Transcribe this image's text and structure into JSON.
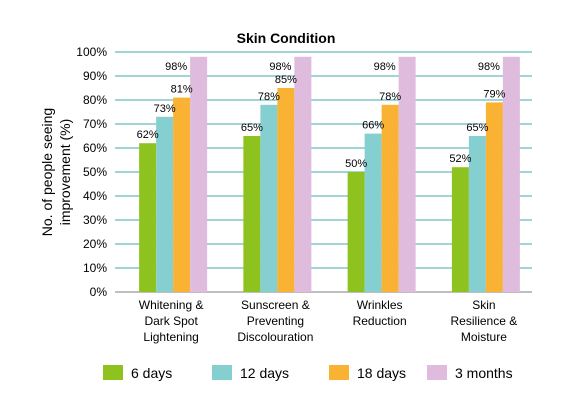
{
  "chart_data": {
    "type": "bar",
    "title": "Skin Condition",
    "ylabel": "No. of people seeing improvement (%)",
    "ylabel_lines": [
      "No. of people seeing",
      "improvement (%)"
    ],
    "xlabel": "",
    "ylim": [
      0,
      100
    ],
    "yticks": [
      0,
      10,
      20,
      30,
      40,
      50,
      60,
      70,
      80,
      90,
      100
    ],
    "ytick_labels": [
      "0%",
      "10%",
      "20%",
      "30%",
      "40%",
      "50%",
      "60%",
      "70%",
      "80%",
      "90%",
      "100%"
    ],
    "grid": true,
    "legend_position": "bottom",
    "categories": [
      "Whitening & Dark Spot Lightening",
      "Sunscreen & Preventing Discolouration",
      "Wrinkles Reduction",
      "Skin Resilience & Moisture"
    ],
    "category_lines": [
      [
        "Whitening &",
        "Dark Spot",
        "Lightening"
      ],
      [
        "Sunscreen &",
        "Preventing",
        "Discolouration"
      ],
      [
        "Wrinkles",
        "Reduction"
      ],
      [
        "Skin",
        "Resilience &",
        "Moisture"
      ]
    ],
    "series": [
      {
        "name": "6 days",
        "color": "#8dc21f",
        "values": [
          62,
          65,
          50,
          52
        ],
        "labels": [
          "62%",
          "65%",
          "50%",
          "52%"
        ]
      },
      {
        "name": "12  days",
        "color": "#86cfd1",
        "values": [
          73,
          78,
          66,
          65
        ],
        "labels": [
          "73%",
          "78%",
          "66%",
          "65%"
        ]
      },
      {
        "name": "18 days",
        "color": "#f9b233",
        "values": [
          81,
          85,
          78,
          79
        ],
        "labels": [
          "81%",
          "85%",
          "78%",
          "79%"
        ]
      },
      {
        "name": "3  months",
        "color": "#dfbcdd",
        "values": [
          98,
          98,
          98,
          98
        ],
        "labels": [
          "98%",
          "98%",
          "98%",
          "98%"
        ]
      }
    ],
    "gridline_color": "#3fa8b0",
    "axis_color": "#7f7f7f"
  }
}
